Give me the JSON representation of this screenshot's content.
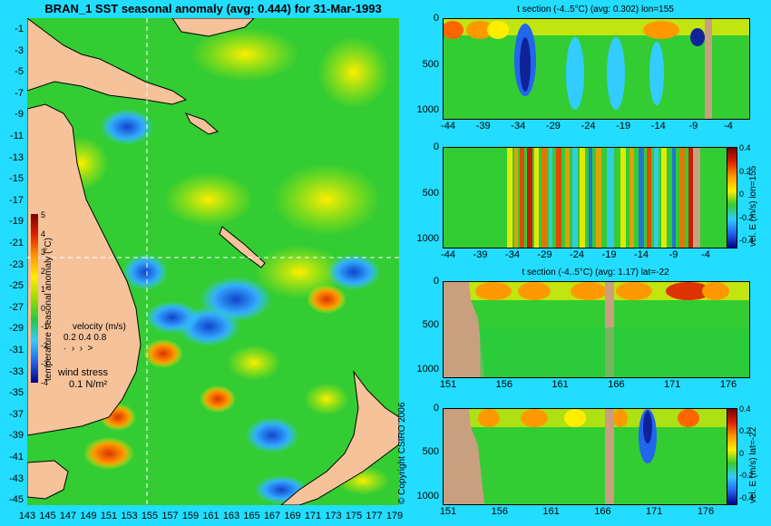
{
  "title": "BRAN_1 SST seasonal anomaly (avg: 0.444) for 31-Mar-1993",
  "map": {
    "lat_ticks": [
      "-1",
      "-3",
      "-5",
      "-7",
      "-9",
      "-11",
      "-13",
      "-15",
      "-17",
      "-19",
      "-21",
      "-23",
      "-25",
      "-27",
      "-29",
      "-31",
      "-33",
      "-35",
      "-37",
      "-39",
      "-41",
      "-43",
      "-45"
    ],
    "lon_ticks": [
      "143",
      "145",
      "147",
      "149",
      "151",
      "153",
      "155",
      "157",
      "159",
      "161",
      "163",
      "165",
      "167",
      "169",
      "171",
      "173",
      "175",
      "177",
      "179"
    ],
    "colorbar_ticks": [
      "5",
      "4",
      "3",
      "2",
      "1",
      "0",
      "-1",
      "-2",
      "-3",
      "-4"
    ],
    "colorbar_label": "temperature seasonal anomaly (°C)",
    "velocity_label": "velocity (m/s)",
    "velocity_scale": "0.2 0.4 0.8",
    "wind_label": "wind stress",
    "wind_scale": "0.1 N/m²",
    "crosshair_lon": 155,
    "crosshair_lat": -22,
    "colors": {
      "ocean": "#33cc33",
      "land": "#f5c29a",
      "background": "#22ddff",
      "crosshair": "#ffffff"
    }
  },
  "copyright": "© Copyright CSIRO 2006",
  "panels": [
    {
      "title": "t section (-4..5°C) (avg: 0.302) lon=155",
      "x_ticks": [
        "-44",
        "-39",
        "-34",
        "-29",
        "-24",
        "-19",
        "-14",
        "-9",
        "-4"
      ],
      "y_ticks": [
        "0",
        "500",
        "1000"
      ],
      "side_label": ""
    },
    {
      "title": "",
      "x_ticks": [
        "-44",
        "-39",
        "-34",
        "-29",
        "-24",
        "-19",
        "-14",
        "-9",
        "-4"
      ],
      "y_ticks": [
        "0",
        "500",
        "1000"
      ],
      "side_label": "vel. E (m/s) lon=155",
      "cbar_ticks": [
        "0.4",
        "0.2",
        "0",
        "-0.2",
        "-0.4"
      ]
    },
    {
      "title": "t section (-4..5°C) (avg: 1.17) lat=-22",
      "x_ticks": [
        "151",
        "156",
        "161",
        "166",
        "171",
        "176"
      ],
      "y_ticks": [
        "0",
        "500",
        "1000"
      ],
      "side_label": ""
    },
    {
      "title": "",
      "x_ticks": [
        "151",
        "156",
        "161",
        "166",
        "171",
        "176"
      ],
      "y_ticks": [
        "0",
        "500",
        "1000"
      ],
      "side_label": "vel. E (m/s) lat=-22",
      "cbar_ticks": [
        "0.4",
        "0.2",
        "0",
        "-0.2",
        "-0.4"
      ]
    }
  ]
}
